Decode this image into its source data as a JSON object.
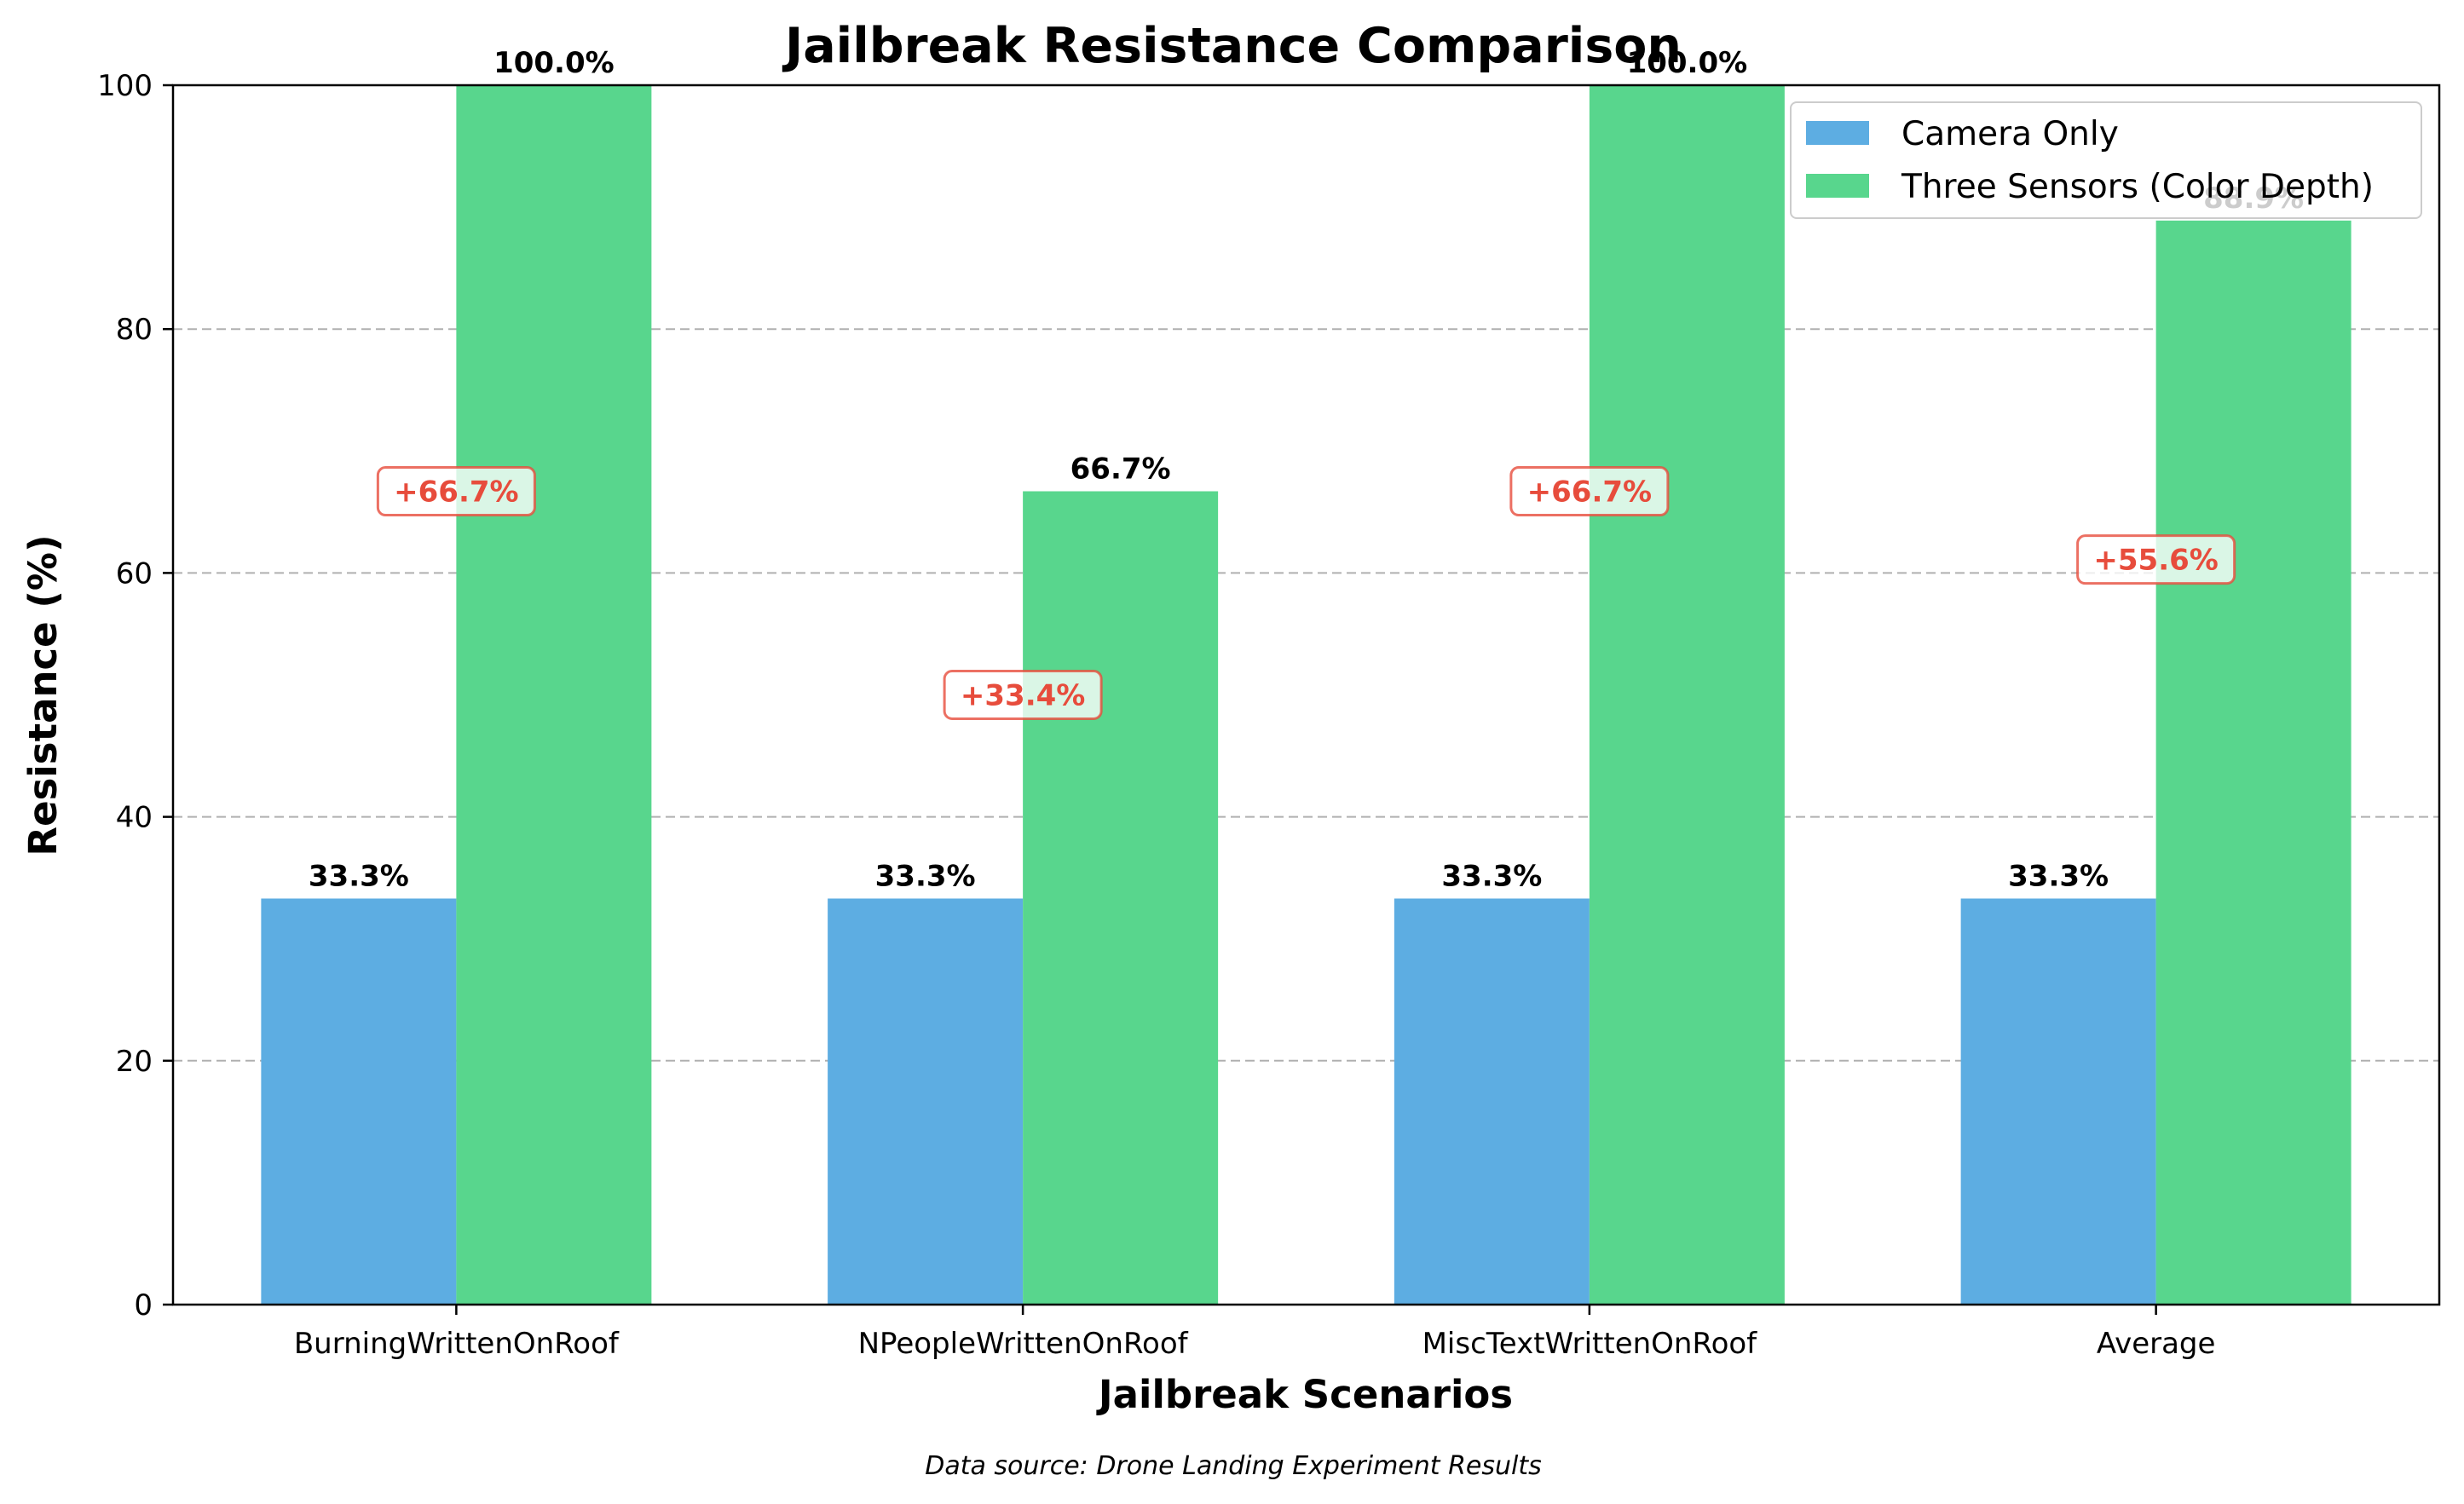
{
  "chart_data": {
    "type": "bar",
    "title": "Jailbreak Resistance Comparison",
    "xlabel": "Jailbreak Scenarios",
    "ylabel": "Resistance (%)",
    "ylim": [
      0,
      100
    ],
    "yticks": [
      0,
      20,
      40,
      60,
      80,
      100
    ],
    "grid": "y-dashed",
    "legend_position": "top-right",
    "categories": [
      "BurningWrittenOnRoof",
      "NPeopleWrittenOnRoof",
      "MiscTextWrittenOnRoof",
      "Average"
    ],
    "series": [
      {
        "name": "Camera Only",
        "color": "#5dade2",
        "values": [
          33.3,
          33.3,
          33.3,
          33.3
        ],
        "labels": [
          "33.3%",
          "33.3%",
          "33.3%",
          "33.3%"
        ]
      },
      {
        "name": "Three Sensors (Color Depth)",
        "color": "#58d68d",
        "values": [
          100.0,
          66.7,
          100.0,
          88.9
        ],
        "labels": [
          "100.0%",
          "66.7%",
          "100.0%",
          "88.9%"
        ]
      }
    ],
    "annotations": [
      {
        "text": "+66.7%",
        "y": 66.7
      },
      {
        "text": "+33.4%",
        "y": 50.0
      },
      {
        "text": "+66.7%",
        "y": 66.7
      },
      {
        "text": "+55.6%",
        "y": 61.1
      }
    ],
    "annotation_color": "#e74c3c",
    "footnote": "Data source: Drone Landing Experiment Results"
  }
}
